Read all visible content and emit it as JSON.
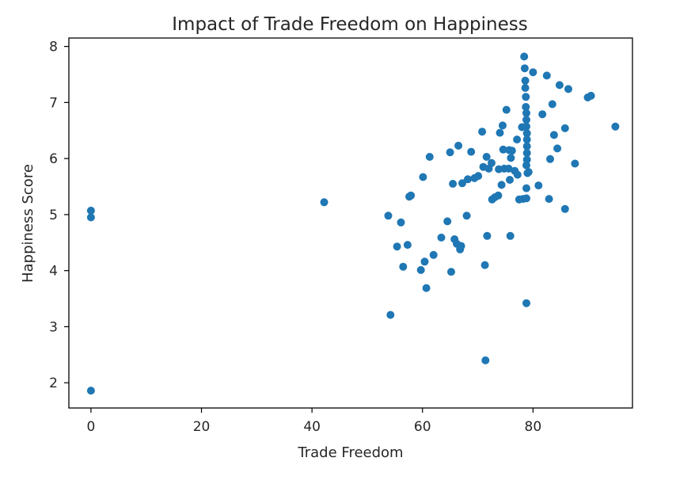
{
  "chart_data": {
    "type": "scatter",
    "title": "Impact of Trade Freedom on Happiness",
    "xlabel": "Trade Freedom",
    "ylabel": "Happiness Score",
    "xlim": [
      -4,
      98
    ],
    "ylim": [
      1.55,
      8.15
    ],
    "xticks": [
      0,
      20,
      40,
      60,
      80
    ],
    "yticks": [
      2,
      3,
      4,
      5,
      6,
      7,
      8
    ],
    "grid": false,
    "color": "#1f77b4",
    "points": [
      {
        "x": 0,
        "y": 5.07
      },
      {
        "x": 0,
        "y": 4.95
      },
      {
        "x": 0,
        "y": 1.86
      },
      {
        "x": 42.2,
        "y": 5.22
      },
      {
        "x": 53.8,
        "y": 4.98
      },
      {
        "x": 54.2,
        "y": 3.21
      },
      {
        "x": 55.4,
        "y": 4.43
      },
      {
        "x": 56.1,
        "y": 4.86
      },
      {
        "x": 56.5,
        "y": 4.07
      },
      {
        "x": 57.3,
        "y": 4.46
      },
      {
        "x": 57.6,
        "y": 5.32
      },
      {
        "x": 57.9,
        "y": 5.34
      },
      {
        "x": 59.7,
        "y": 4.01
      },
      {
        "x": 60.1,
        "y": 5.67
      },
      {
        "x": 60.4,
        "y": 4.16
      },
      {
        "x": 60.7,
        "y": 3.69
      },
      {
        "x": 61.3,
        "y": 6.03
      },
      {
        "x": 62,
        "y": 4.28
      },
      {
        "x": 63.4,
        "y": 4.59
      },
      {
        "x": 64.5,
        "y": 4.88
      },
      {
        "x": 65,
        "y": 6.11
      },
      {
        "x": 65.2,
        "y": 3.98
      },
      {
        "x": 65.5,
        "y": 5.55
      },
      {
        "x": 65.8,
        "y": 4.56
      },
      {
        "x": 66.2,
        "y": 4.48
      },
      {
        "x": 66.5,
        "y": 6.23
      },
      {
        "x": 66.8,
        "y": 4.38
      },
      {
        "x": 67,
        "y": 4.44
      },
      {
        "x": 67.2,
        "y": 5.56
      },
      {
        "x": 68,
        "y": 4.98
      },
      {
        "x": 68.2,
        "y": 5.63
      },
      {
        "x": 68.8,
        "y": 6.12
      },
      {
        "x": 69.4,
        "y": 5.65
      },
      {
        "x": 70.1,
        "y": 5.69
      },
      {
        "x": 70.8,
        "y": 6.48
      },
      {
        "x": 71,
        "y": 5.85
      },
      {
        "x": 71.3,
        "y": 4.1
      },
      {
        "x": 71.4,
        "y": 2.4
      },
      {
        "x": 71.6,
        "y": 6.03
      },
      {
        "x": 71.7,
        "y": 4.62
      },
      {
        "x": 72,
        "y": 5.82
      },
      {
        "x": 72.5,
        "y": 5.92
      },
      {
        "x": 72.6,
        "y": 5.27
      },
      {
        "x": 73.1,
        "y": 5.31
      },
      {
        "x": 73.7,
        "y": 5.34
      },
      {
        "x": 73.8,
        "y": 5.81
      },
      {
        "x": 74,
        "y": 6.46
      },
      {
        "x": 74.3,
        "y": 5.53
      },
      {
        "x": 74.5,
        "y": 6.59
      },
      {
        "x": 74.6,
        "y": 6.16
      },
      {
        "x": 74.8,
        "y": 5.82
      },
      {
        "x": 75.2,
        "y": 6.87
      },
      {
        "x": 75.6,
        "y": 5.82
      },
      {
        "x": 75.7,
        "y": 6.15
      },
      {
        "x": 75.8,
        "y": 5.62
      },
      {
        "x": 75.9,
        "y": 4.62
      },
      {
        "x": 76,
        "y": 6.01
      },
      {
        "x": 76.2,
        "y": 6.14
      },
      {
        "x": 76.7,
        "y": 5.78
      },
      {
        "x": 77.1,
        "y": 6.34
      },
      {
        "x": 77.2,
        "y": 5.71
      },
      {
        "x": 77.5,
        "y": 5.27
      },
      {
        "x": 78,
        "y": 6.56
      },
      {
        "x": 78.2,
        "y": 5.28
      },
      {
        "x": 78.4,
        "y": 7.82
      },
      {
        "x": 78.5,
        "y": 7.61
      },
      {
        "x": 78.6,
        "y": 7.39
      },
      {
        "x": 78.6,
        "y": 7.26
      },
      {
        "x": 78.7,
        "y": 7.1
      },
      {
        "x": 78.7,
        "y": 6.92
      },
      {
        "x": 78.8,
        "y": 6.81
      },
      {
        "x": 78.8,
        "y": 6.69
      },
      {
        "x": 78.8,
        "y": 6.57
      },
      {
        "x": 78.9,
        "y": 6.45
      },
      {
        "x": 78.9,
        "y": 6.34
      },
      {
        "x": 78.9,
        "y": 6.22
      },
      {
        "x": 78.9,
        "y": 6.1
      },
      {
        "x": 78.9,
        "y": 5.98
      },
      {
        "x": 78.8,
        "y": 5.88
      },
      {
        "x": 78.8,
        "y": 5.47
      },
      {
        "x": 78.8,
        "y": 5.29
      },
      {
        "x": 78.8,
        "y": 3.42
      },
      {
        "x": 79,
        "y": 5.74
      },
      {
        "x": 79.2,
        "y": 5.76
      },
      {
        "x": 80,
        "y": 7.54
      },
      {
        "x": 81,
        "y": 5.52
      },
      {
        "x": 81.7,
        "y": 6.79
      },
      {
        "x": 82.5,
        "y": 7.48
      },
      {
        "x": 82.9,
        "y": 5.28
      },
      {
        "x": 83.1,
        "y": 5.99
      },
      {
        "x": 83.5,
        "y": 6.97
      },
      {
        "x": 83.8,
        "y": 6.42
      },
      {
        "x": 84.4,
        "y": 6.18
      },
      {
        "x": 84.8,
        "y": 7.31
      },
      {
        "x": 85.8,
        "y": 6.54
      },
      {
        "x": 85.8,
        "y": 5.1
      },
      {
        "x": 86.4,
        "y": 7.24
      },
      {
        "x": 87.6,
        "y": 5.91
      },
      {
        "x": 89.9,
        "y": 7.09
      },
      {
        "x": 90.5,
        "y": 7.12
      },
      {
        "x": 94.9,
        "y": 6.57
      }
    ]
  }
}
